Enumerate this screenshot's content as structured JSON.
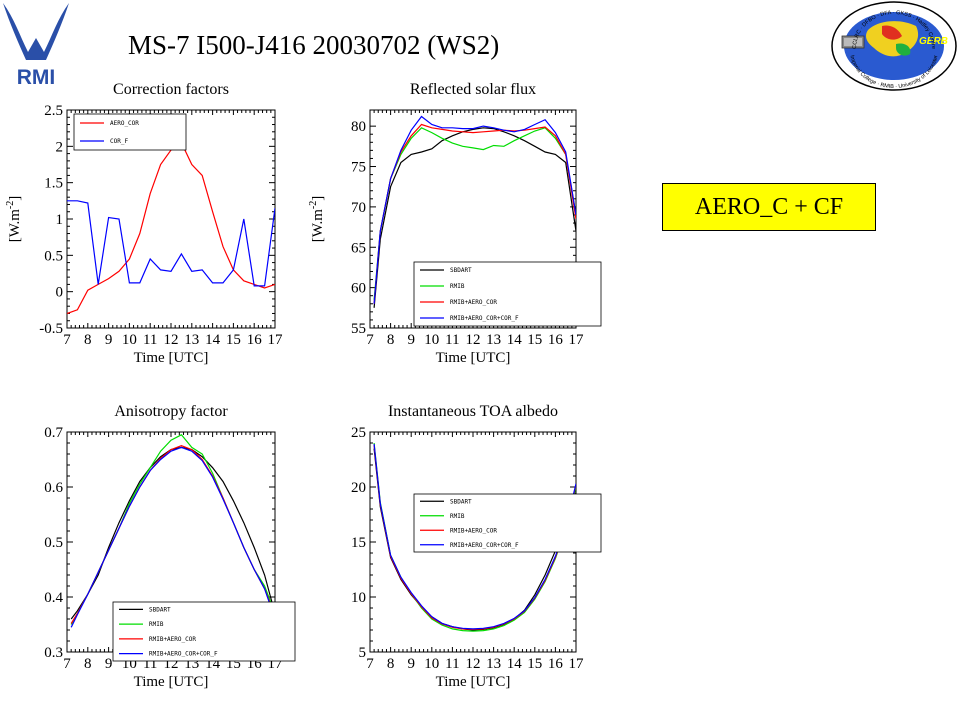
{
  "header": {
    "title": "MS-7 I500-J416 20030702 (WS2)",
    "rmi_logo_text": "RMI",
    "gerb_logo": {
      "center_text": "GERB",
      "ring_text_top": "CCLRC · DFBO · DFA · GKSS · Hadley Centre",
      "ring_text_bottom": "Imperial College · RMIB · University of Leicester"
    }
  },
  "highlight_label": "AERO_C + CF",
  "colors": {
    "black": "#000000",
    "green": "#00dd00",
    "red": "#ff0000",
    "blue": "#0000ff"
  },
  "chart_data": [
    {
      "type": "line",
      "title": "Correction factors",
      "xlabel": "Time [UTC]",
      "ylabel": "[W.m-2]",
      "xlim": [
        7,
        17
      ],
      "ylim": [
        -0.5,
        2.5
      ],
      "xticks": [
        7,
        8,
        9,
        10,
        11,
        12,
        13,
        14,
        15,
        16,
        17
      ],
      "yticks": [
        -0.5,
        0,
        0.5,
        1,
        1.5,
        2,
        2.5
      ],
      "ytick_labels": [
        "-0.5",
        "0",
        "0.5",
        "1",
        "1.5",
        "2",
        "2.5"
      ],
      "grid": false,
      "legend_position": "top-left",
      "series": [
        {
          "name": "AERO_COR",
          "color": "#ff0000",
          "x": [
            7,
            7.5,
            8,
            8.5,
            9,
            9.5,
            10,
            10.5,
            11,
            11.5,
            12,
            12.5,
            13,
            13.5,
            14,
            14.5,
            15,
            15.5,
            16,
            16.5,
            17
          ],
          "y": [
            -0.3,
            -0.25,
            0.02,
            0.1,
            0.18,
            0.28,
            0.45,
            0.8,
            1.35,
            1.75,
            1.95,
            2.05,
            1.75,
            1.6,
            1.1,
            0.62,
            0.3,
            0.15,
            0.1,
            0.05,
            0.1
          ]
        },
        {
          "name": "COR_F",
          "color": "#0000ff",
          "x": [
            7,
            7.5,
            8,
            8.5,
            9,
            9.5,
            10,
            10.5,
            11,
            11.5,
            12,
            12.5,
            13,
            13.5,
            14,
            14.5,
            15,
            15.5,
            16,
            16.5,
            17
          ],
          "y": [
            1.25,
            1.25,
            1.22,
            0.1,
            1.02,
            1.0,
            0.12,
            0.12,
            0.45,
            0.3,
            0.28,
            0.52,
            0.28,
            0.3,
            0.12,
            0.12,
            0.3,
            1.0,
            0.08,
            0.08,
            1.15
          ]
        }
      ]
    },
    {
      "type": "line",
      "title": "Reflected solar flux",
      "xlabel": "Time [UTC]",
      "ylabel": "[W.m-2]",
      "xlim": [
        7,
        17
      ],
      "ylim": [
        55,
        82
      ],
      "xticks": [
        7,
        8,
        9,
        10,
        11,
        12,
        13,
        14,
        15,
        16,
        17
      ],
      "yticks": [
        55,
        60,
        65,
        70,
        75,
        80
      ],
      "ytick_labels": [
        "55",
        "60",
        "65",
        "70",
        "75",
        "80"
      ],
      "grid": false,
      "legend_position": "bottom-left",
      "series": [
        {
          "name": "SBDART",
          "color": "#000000",
          "x": [
            7.2,
            7.5,
            8,
            8.5,
            9,
            9.5,
            10,
            10.5,
            11,
            11.5,
            12,
            12.5,
            13,
            13.5,
            14,
            14.5,
            15,
            15.5,
            16,
            16.5,
            17
          ],
          "y": [
            57.5,
            66,
            72.5,
            75.5,
            76.5,
            76.8,
            77.2,
            78.2,
            78.8,
            79.3,
            79.6,
            79.8,
            79.7,
            79.3,
            78.8,
            78.2,
            77.5,
            76.8,
            76.5,
            75.5,
            67
          ]
        },
        {
          "name": "RMIB",
          "color": "#00dd00",
          "x": [
            7.2,
            7.5,
            8,
            8.5,
            9,
            9.5,
            10,
            10.5,
            11,
            11.5,
            12,
            12.5,
            13,
            13.5,
            14,
            14.5,
            15,
            15.5,
            16,
            16.5,
            17
          ],
          "y": [
            58.5,
            67,
            73.5,
            76.5,
            78.5,
            79.8,
            79.2,
            78.5,
            77.9,
            77.5,
            77.3,
            77.1,
            77.6,
            77.5,
            78.2,
            78.8,
            79.4,
            79.8,
            78.5,
            76.5,
            69
          ]
        },
        {
          "name": "RMIB+AERO_COR",
          "color": "#ff0000",
          "x": [
            7.2,
            7.5,
            8,
            8.5,
            9,
            9.5,
            10,
            10.5,
            11,
            11.5,
            12,
            12.5,
            13,
            13.5,
            14,
            14.5,
            15,
            15.5,
            16,
            16.5,
            17
          ],
          "y": [
            58,
            67,
            73.5,
            76.8,
            78.8,
            80.2,
            79.8,
            79.6,
            79.4,
            79.3,
            79.2,
            79.3,
            79.4,
            79.5,
            79.4,
            79.5,
            79.7,
            79.9,
            78.8,
            76.5,
            68.5
          ]
        },
        {
          "name": "RMIB+AERO_COR+COR_F",
          "color": "#0000ff",
          "x": [
            7.2,
            7.5,
            8,
            8.5,
            9,
            9.5,
            10,
            10.5,
            11,
            11.5,
            12,
            12.5,
            13,
            13.5,
            14,
            14.5,
            15,
            15.5,
            16,
            16.5,
            17
          ],
          "y": [
            58,
            67,
            73.5,
            77,
            79.5,
            81.2,
            80.2,
            79.8,
            79.8,
            79.7,
            79.7,
            80.0,
            79.8,
            79.5,
            79.3,
            79.6,
            80.2,
            80.8,
            79.2,
            76.8,
            69
          ]
        }
      ]
    },
    {
      "type": "line",
      "title": "Anisotropy factor",
      "xlabel": "Time [UTC]",
      "ylabel": "",
      "xlim": [
        7,
        17
      ],
      "ylim": [
        0.3,
        0.7
      ],
      "xticks": [
        7,
        8,
        9,
        10,
        11,
        12,
        13,
        14,
        15,
        16,
        17
      ],
      "yticks": [
        0.3,
        0.4,
        0.5,
        0.6,
        0.7
      ],
      "ytick_labels": [
        "0.3",
        "0.4",
        "0.5",
        "0.6",
        "0.7"
      ],
      "grid": false,
      "legend_position": "bottom-right",
      "series": [
        {
          "name": "SBDART",
          "color": "#000000",
          "x": [
            7.2,
            7.5,
            8,
            8.5,
            9,
            9.5,
            10,
            10.5,
            11,
            11.5,
            12,
            12.5,
            13,
            13.5,
            14,
            14.5,
            15,
            15.5,
            16,
            16.5,
            17
          ],
          "y": [
            0.36,
            0.375,
            0.405,
            0.44,
            0.49,
            0.535,
            0.575,
            0.61,
            0.635,
            0.655,
            0.668,
            0.672,
            0.668,
            0.655,
            0.635,
            0.61,
            0.575,
            0.535,
            0.49,
            0.44,
            0.37
          ]
        },
        {
          "name": "RMIB",
          "color": "#00dd00",
          "x": [
            7.2,
            7.5,
            8,
            8.5,
            9,
            9.5,
            10,
            10.5,
            11,
            11.5,
            12,
            12.5,
            13,
            13.5,
            14,
            14.5,
            15,
            15.5,
            16,
            16.5,
            17
          ],
          "y": [
            0.35,
            0.37,
            0.405,
            0.445,
            0.485,
            0.525,
            0.57,
            0.605,
            0.635,
            0.665,
            0.685,
            0.695,
            0.672,
            0.66,
            0.625,
            0.58,
            0.535,
            0.49,
            0.45,
            0.42,
            0.37
          ]
        },
        {
          "name": "RMIB+AERO_COR",
          "color": "#ff0000",
          "x": [
            7.2,
            7.5,
            8,
            8.5,
            9,
            9.5,
            10,
            10.5,
            11,
            11.5,
            12,
            12.5,
            13,
            13.5,
            14,
            14.5,
            15,
            15.5,
            16,
            16.5,
            17
          ],
          "y": [
            0.352,
            0.37,
            0.405,
            0.445,
            0.485,
            0.525,
            0.565,
            0.6,
            0.63,
            0.652,
            0.668,
            0.675,
            0.668,
            0.65,
            0.62,
            0.58,
            0.535,
            0.49,
            0.45,
            0.415,
            0.365
          ]
        },
        {
          "name": "RMIB+AERO_COR+COR_F",
          "color": "#0000ff",
          "x": [
            7.2,
            7.5,
            8,
            8.5,
            9,
            9.5,
            10,
            10.5,
            11,
            11.5,
            12,
            12.5,
            13,
            13.5,
            14,
            14.5,
            15,
            15.5,
            16,
            16.5,
            17
          ],
          "y": [
            0.345,
            0.368,
            0.405,
            0.445,
            0.485,
            0.525,
            0.565,
            0.6,
            0.63,
            0.65,
            0.665,
            0.672,
            0.665,
            0.648,
            0.618,
            0.578,
            0.535,
            0.49,
            0.45,
            0.415,
            0.36
          ]
        }
      ]
    },
    {
      "type": "line",
      "title": "Instantaneous TOA albedo",
      "xlabel": "Time [UTC]",
      "ylabel": "",
      "xlim": [
        7,
        17
      ],
      "ylim": [
        5,
        25
      ],
      "xticks": [
        7,
        8,
        9,
        10,
        11,
        12,
        13,
        14,
        15,
        16,
        17
      ],
      "yticks": [
        5,
        10,
        15,
        20,
        25
      ],
      "ytick_labels": [
        "5",
        "10",
        "15",
        "20",
        "25"
      ],
      "grid": false,
      "legend_position": "top-right",
      "series": [
        {
          "name": "SBDART",
          "color": "#000000",
          "x": [
            7.2,
            7.5,
            8,
            8.5,
            9,
            9.5,
            10,
            10.5,
            11,
            11.5,
            12,
            12.5,
            13,
            13.5,
            14,
            14.5,
            15,
            15.5,
            16,
            16.5,
            17
          ],
          "y": [
            23.5,
            18.2,
            13.6,
            11.6,
            10.2,
            9.1,
            8.2,
            7.6,
            7.3,
            7.1,
            7.0,
            7.05,
            7.2,
            7.5,
            8.0,
            8.8,
            10.2,
            12.0,
            14.2,
            16.5,
            19.5
          ]
        },
        {
          "name": "RMIB",
          "color": "#00dd00",
          "x": [
            7.2,
            7.5,
            8,
            8.5,
            9,
            9.5,
            10,
            10.5,
            11,
            11.5,
            12,
            12.5,
            13,
            13.5,
            14,
            14.5,
            15,
            15.5,
            16,
            16.5,
            17
          ],
          "y": [
            24.0,
            18.6,
            13.8,
            11.8,
            10.3,
            9.0,
            8.0,
            7.45,
            7.1,
            6.95,
            6.9,
            6.95,
            7.1,
            7.4,
            7.9,
            8.6,
            9.8,
            11.4,
            13.5,
            16.2,
            20.0
          ]
        },
        {
          "name": "RMIB+AERO_COR",
          "color": "#ff0000",
          "x": [
            7.2,
            7.5,
            8,
            8.5,
            9,
            9.5,
            10,
            10.5,
            11,
            11.5,
            12,
            12.5,
            13,
            13.5,
            14,
            14.5,
            15,
            15.5,
            16,
            16.5,
            17
          ],
          "y": [
            23.8,
            18.4,
            13.7,
            11.7,
            10.3,
            9.1,
            8.1,
            7.55,
            7.25,
            7.1,
            7.05,
            7.1,
            7.25,
            7.55,
            8.0,
            8.7,
            9.9,
            11.5,
            13.6,
            16.3,
            20.2
          ]
        },
        {
          "name": "RMIB+AERO_COR+COR_F",
          "color": "#0000ff",
          "x": [
            7.2,
            7.5,
            8,
            8.5,
            9,
            9.5,
            10,
            10.5,
            11,
            11.5,
            12,
            12.5,
            13,
            13.5,
            14,
            14.5,
            15,
            15.5,
            16,
            16.5,
            17
          ],
          "y": [
            23.9,
            18.5,
            13.8,
            11.8,
            10.4,
            9.2,
            8.2,
            7.6,
            7.3,
            7.15,
            7.1,
            7.15,
            7.3,
            7.6,
            8.05,
            8.75,
            9.95,
            11.6,
            13.7,
            16.4,
            20.3
          ]
        }
      ]
    }
  ]
}
